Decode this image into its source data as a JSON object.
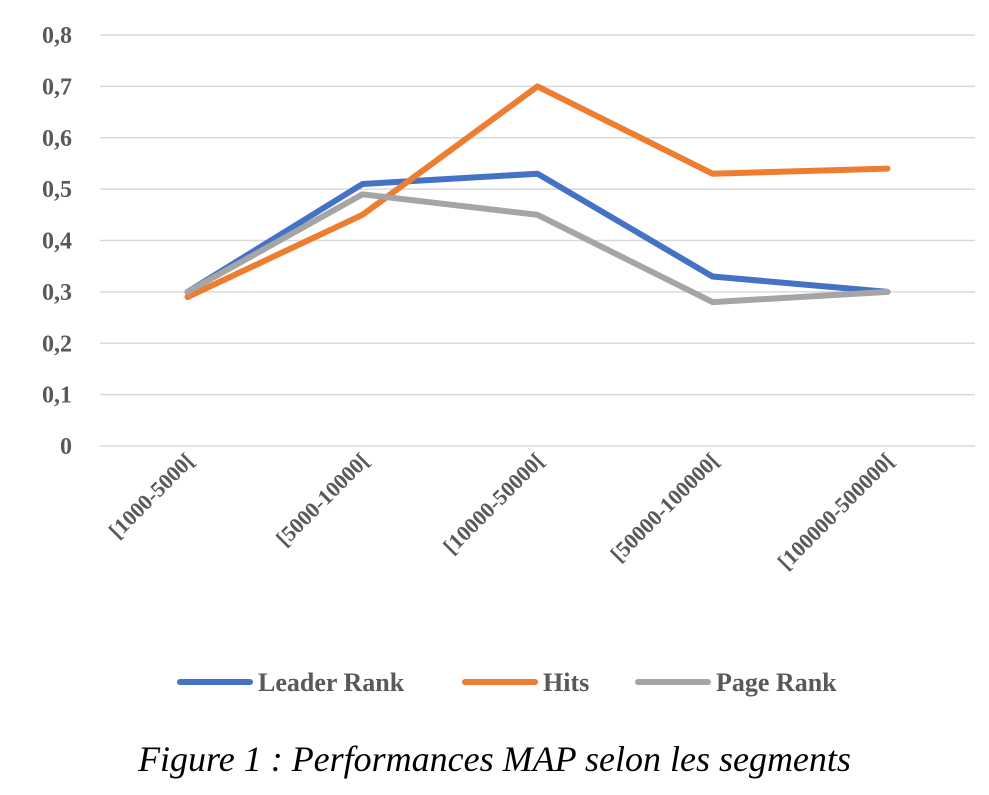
{
  "chart_data": {
    "type": "line",
    "categories": [
      "[1000-5000[",
      "[5000-10000[",
      "[10000-50000[",
      "[50000-100000[",
      "[100000-500000["
    ],
    "series": [
      {
        "name": "Leader Rank",
        "color": "#4472C4",
        "values": [
          0.3,
          0.51,
          0.53,
          0.33,
          0.3
        ]
      },
      {
        "name": "Hits",
        "color": "#ED7D31",
        "values": [
          0.29,
          0.45,
          0.7,
          0.53,
          0.54
        ]
      },
      {
        "name": "Page Rank",
        "color": "#A5A5A5",
        "values": [
          0.3,
          0.49,
          0.45,
          0.28,
          0.3
        ]
      }
    ],
    "ylim": [
      0,
      0.8
    ],
    "yticks": [
      "0",
      "0,1",
      "0,2",
      "0,3",
      "0,4",
      "0,5",
      "0,6",
      "0,7",
      "0,8"
    ],
    "grid": true,
    "legend_position": "bottom"
  },
  "caption": "Figure 1 : Performances MAP selon les segments"
}
